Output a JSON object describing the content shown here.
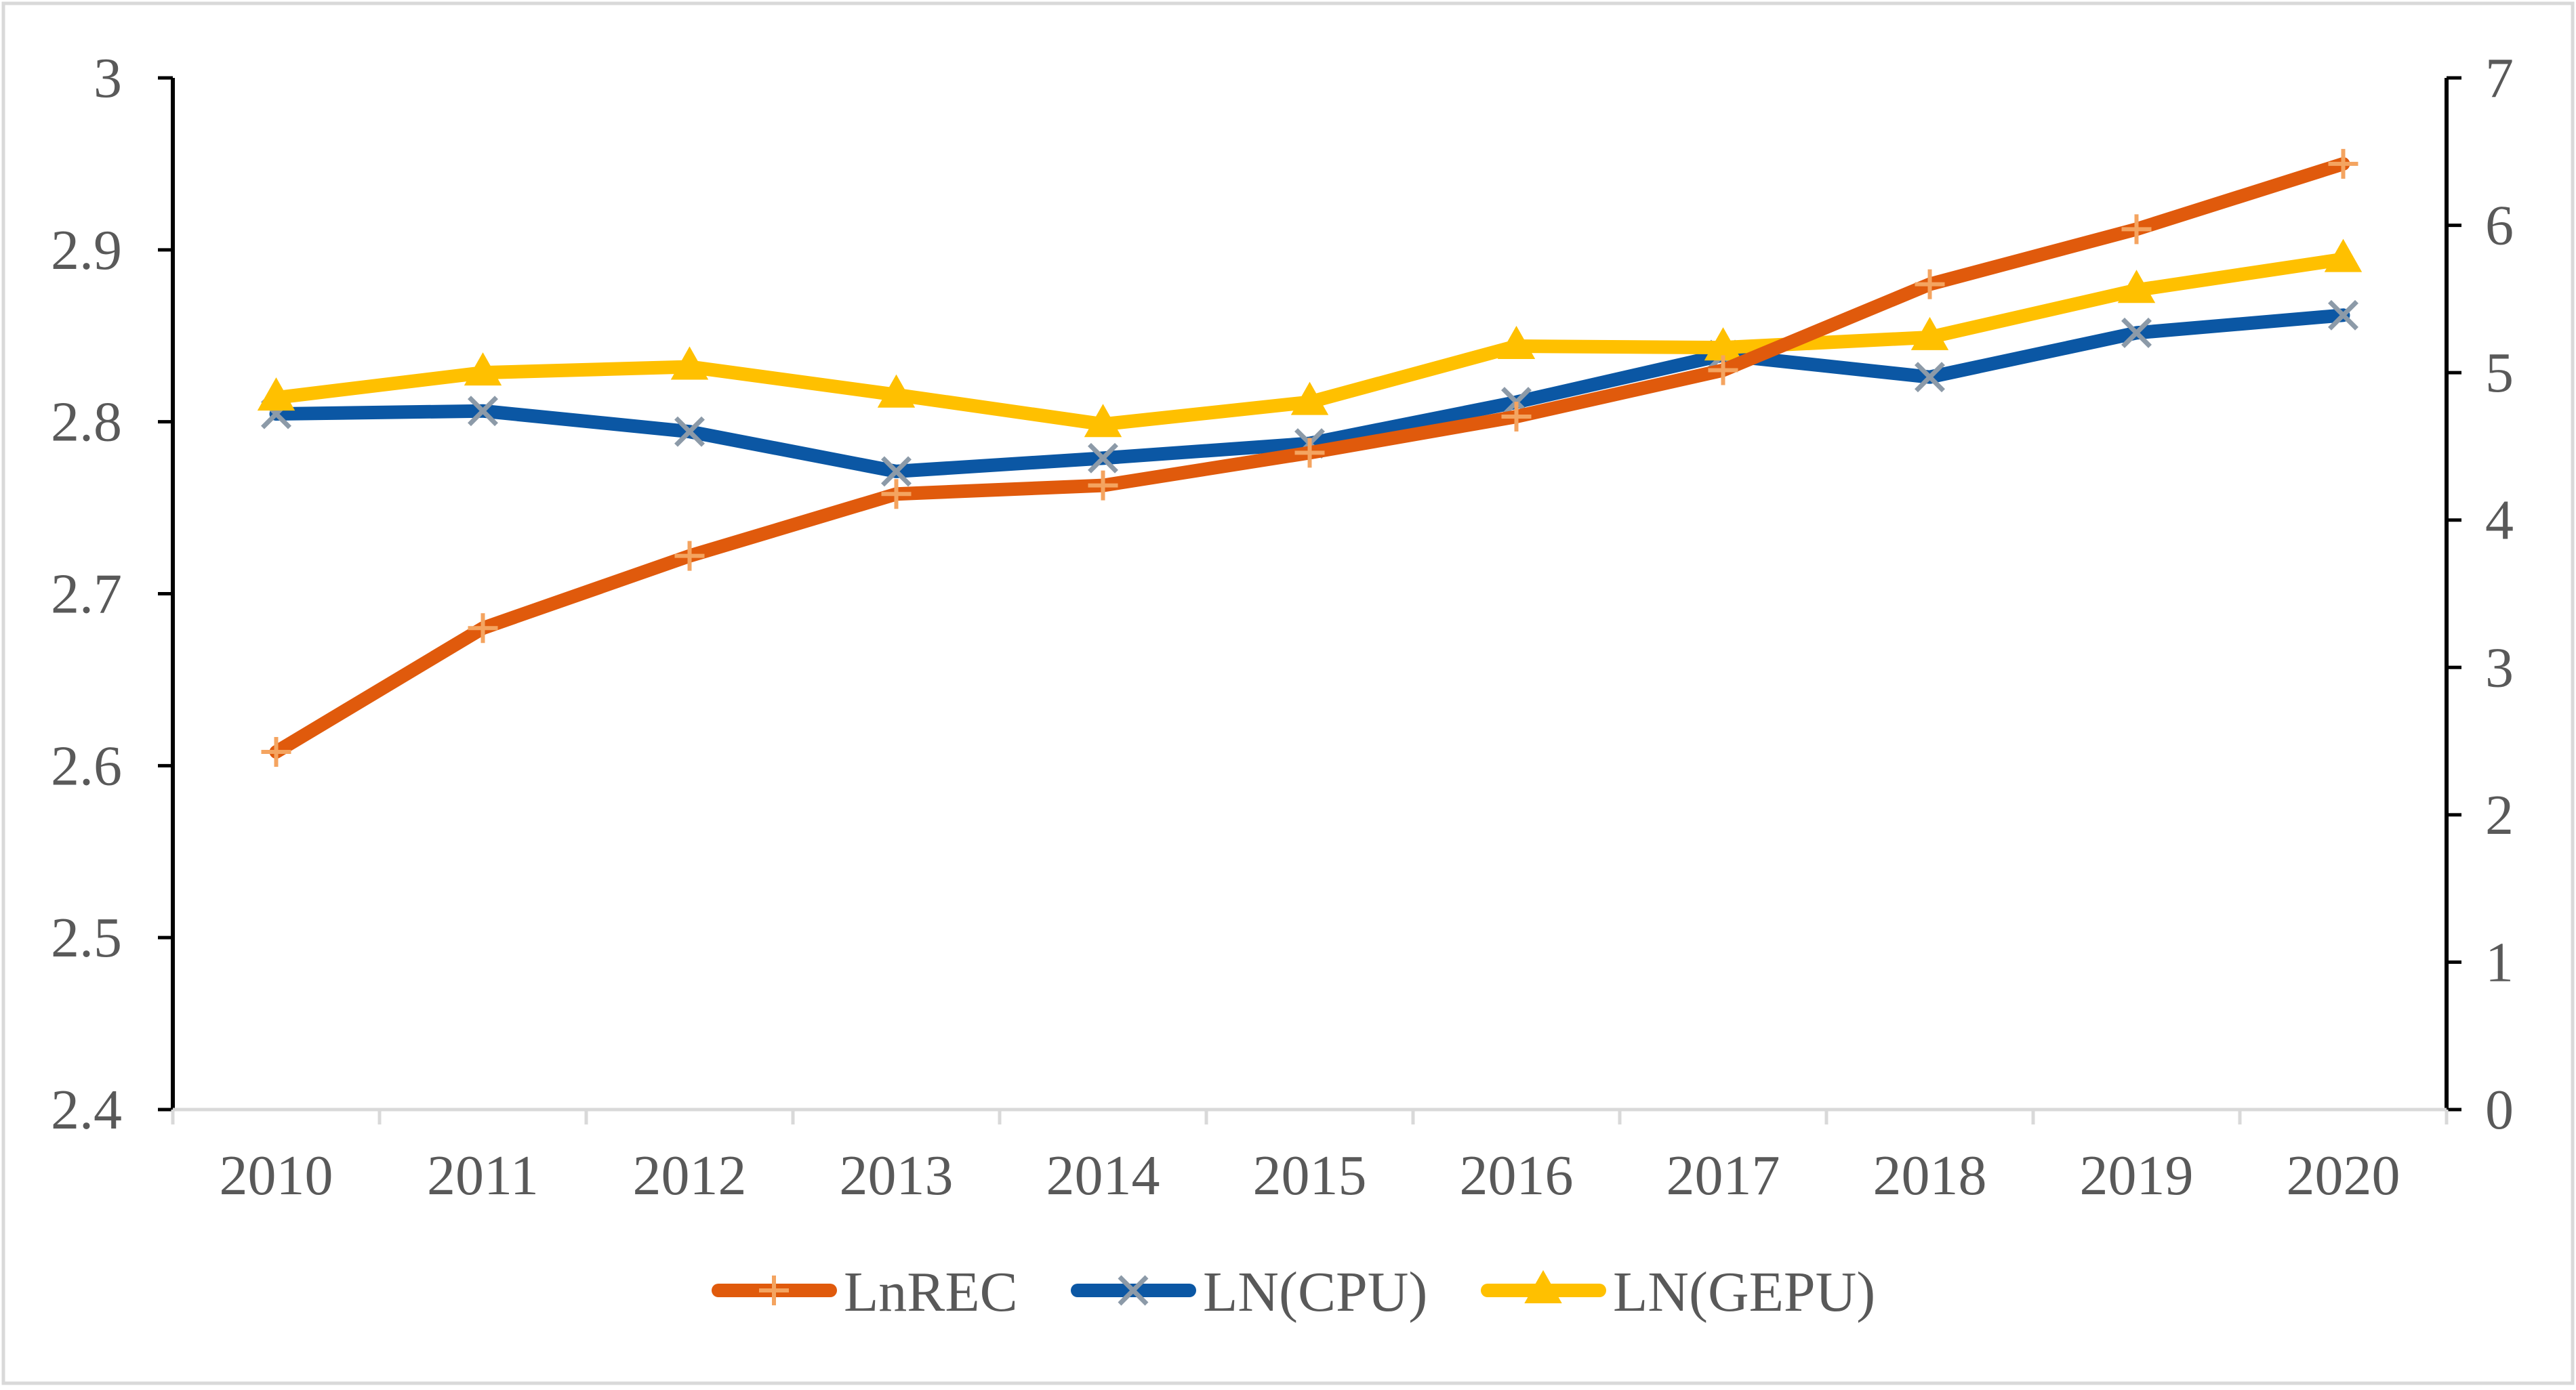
{
  "chart_data": {
    "type": "line",
    "title": "",
    "xlabel": "",
    "ylabel": "",
    "y2label": "",
    "categories": [
      "2010",
      "2011",
      "2012",
      "2013",
      "2014",
      "2015",
      "2016",
      "2017",
      "2018",
      "2019",
      "2020"
    ],
    "ylim": [
      2.4,
      3.0
    ],
    "yticks": [
      "2.4",
      "2.5",
      "2.6",
      "2.7",
      "2.8",
      "2.9",
      "3"
    ],
    "y2lim": [
      0,
      7
    ],
    "y2ticks": [
      "0",
      "1",
      "2",
      "3",
      "4",
      "5",
      "6",
      "7"
    ],
    "grid": false,
    "legend_position": "bottom",
    "series": [
      {
        "name": "LnREC",
        "axis": "left",
        "color": "#E05A0C",
        "marker": "plus",
        "values": [
          2.608,
          2.68,
          2.722,
          2.758,
          2.763,
          2.782,
          2.803,
          2.83,
          2.88,
          2.912,
          2.95
        ]
      },
      {
        "name": "LN(CPU)",
        "axis": "right",
        "color": "#0B57A4",
        "marker": "x",
        "values": [
          4.72,
          4.74,
          4.6,
          4.33,
          4.42,
          4.52,
          4.8,
          5.12,
          4.97,
          5.27,
          5.39
        ]
      },
      {
        "name": "LN(GEPU)",
        "axis": "right",
        "color": "#FFC000",
        "marker": "triangle",
        "values": [
          4.83,
          5.0,
          5.04,
          4.85,
          4.65,
          4.8,
          5.18,
          5.17,
          5.24,
          5.56,
          5.77
        ]
      }
    ]
  }
}
